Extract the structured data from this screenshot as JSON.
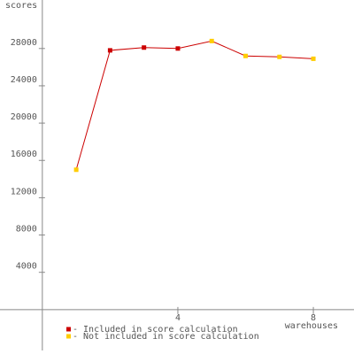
{
  "chart_data": {
    "type": "line",
    "y_label": "scores",
    "x_label": "warehouses",
    "x": [
      1,
      2,
      3,
      4,
      5,
      6,
      7,
      8
    ],
    "series": [
      {
        "color": "#cc0000",
        "values": [
          15000,
          27800,
          28100,
          28000,
          28800,
          27200,
          27100,
          26900
        ]
      }
    ],
    "point_legend": [
      1,
      0,
      0,
      0,
      1,
      1,
      1,
      1
    ],
    "legend": [
      {
        "name": "- Included in score calculation",
        "color": "#cc0000"
      },
      {
        "name": "- Not included in score calculation",
        "color": "#ffcc00"
      }
    ],
    "xlim": [
      -1.25,
      9.2
    ],
    "xticks": [
      4,
      8
    ],
    "ylim": [
      -4000,
      33200
    ],
    "yticks": [
      4000,
      8000,
      12000,
      16000,
      20000,
      24000,
      28000
    ],
    "grid": false
  }
}
